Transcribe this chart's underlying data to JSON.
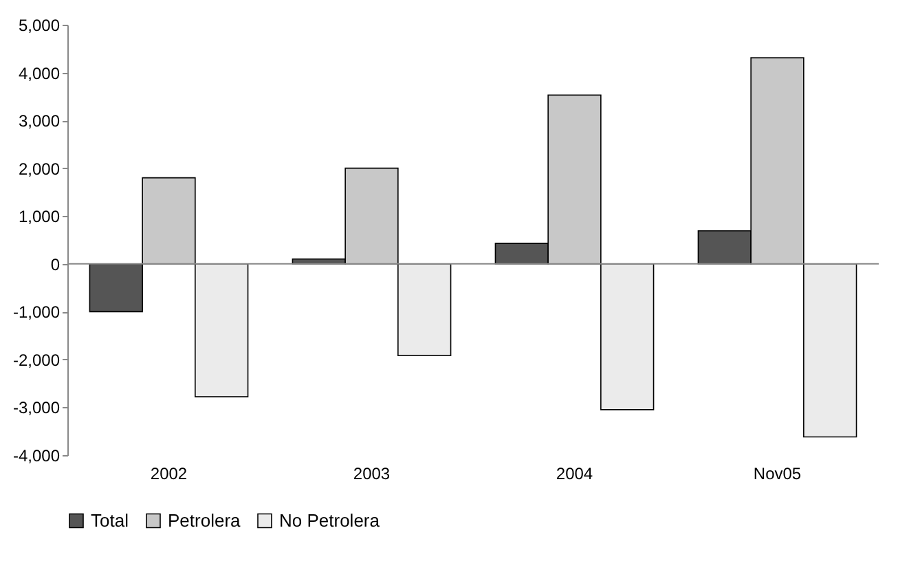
{
  "chart_data": {
    "type": "bar",
    "categories": [
      "2002",
      "2003",
      "2004",
      "Nov05"
    ],
    "series": [
      {
        "name": "Total",
        "color": "#555555",
        "values": [
          -1000,
          100,
          430,
          690
        ]
      },
      {
        "name": "Petrolera",
        "color": "#c8c8c8",
        "values": [
          1800,
          2000,
          3530,
          4310
        ]
      },
      {
        "name": "No Petrolera",
        "color": "#ebebeb",
        "values": [
          -2780,
          -1920,
          -3050,
          -3620
        ]
      }
    ],
    "ylim": [
      -4000,
      5000
    ],
    "yticks": [
      {
        "value": -4000,
        "label": "-4,000"
      },
      {
        "value": -3000,
        "label": "-3,000"
      },
      {
        "value": -2000,
        "label": "-2,000"
      },
      {
        "value": -1000,
        "label": "-1,000"
      },
      0,
      {
        "value": 1000,
        "label": "1,000"
      },
      {
        "value": 2000,
        "label": "2,000"
      },
      {
        "value": 3000,
        "label": "3,000"
      },
      {
        "value": 4000,
        "label": "4,000"
      },
      {
        "value": 5000,
        "label": "5,000"
      }
    ],
    "ref_lines": [
      {
        "axis": "y",
        "value": 0,
        "color": "#888888"
      }
    ],
    "legend": "bottom",
    "grid": false
  }
}
